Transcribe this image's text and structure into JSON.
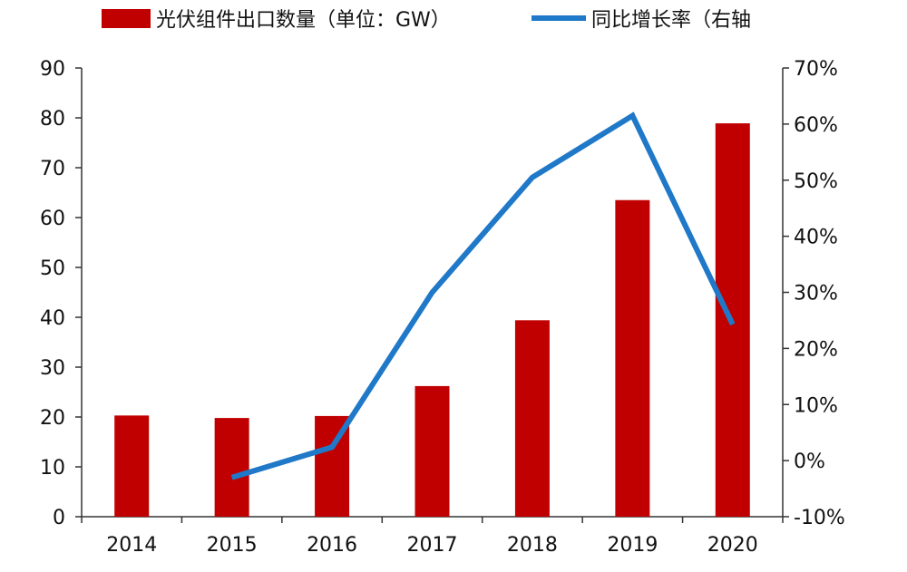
{
  "chart_data": {
    "type": "bar",
    "categories": [
      "2014",
      "2015",
      "2016",
      "2017",
      "2018",
      "2019",
      "2020"
    ],
    "series": [
      {
        "name": "光伏组件出口数量（单位：GW）",
        "type": "bar",
        "axis": "left",
        "color": "#C00000",
        "values": [
          20.3,
          19.8,
          20.2,
          26.2,
          39.4,
          63.5,
          78.9
        ]
      },
      {
        "name": "同比增长率（右轴",
        "type": "line",
        "axis": "right",
        "color": "#1F78C8",
        "values": [
          null,
          -3.0,
          2.4,
          30.0,
          50.5,
          61.5,
          24.3
        ]
      }
    ],
    "y_left": {
      "ylim": [
        0,
        90
      ],
      "ticks": [
        "0",
        "10",
        "20",
        "30",
        "40",
        "50",
        "60",
        "70",
        "80",
        "90"
      ]
    },
    "y_right": {
      "ylim": [
        -10,
        70
      ],
      "ticks": [
        "-10%",
        "0%",
        "10%",
        "20%",
        "30%",
        "40%",
        "50%",
        "60%",
        "70%"
      ]
    },
    "legend_placement": "top",
    "grid": false
  }
}
